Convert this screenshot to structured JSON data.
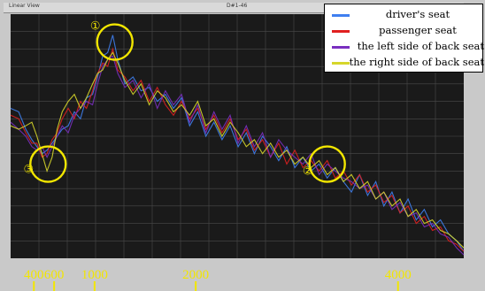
{
  "window": {
    "title": "Linear View",
    "code": "D#1-46"
  },
  "colors": {
    "background": "#ffffff",
    "plot_background": "#1a1a1a",
    "grid": "#4a4a4a",
    "annotation": "#f2e600"
  },
  "chart_data": {
    "type": "line",
    "xscale": "linear",
    "xlim": [
      170,
      4650
    ],
    "xticks": [
      400,
      600,
      1000,
      2000,
      4000
    ],
    "legend": "top-right",
    "grid": true,
    "series": [
      {
        "name": "driver's seat",
        "color": "#3f7ff0",
        "x": [
          170,
          250,
          320,
          380,
          430,
          480,
          530,
          580,
          630,
          680,
          740,
          800,
          860,
          920,
          980,
          1030,
          1080,
          1130,
          1180,
          1230,
          1300,
          1380,
          1460,
          1540,
          1620,
          1700,
          1780,
          1860,
          1940,
          2020,
          2100,
          2180,
          2260,
          2340,
          2420,
          2500,
          2580,
          2660,
          2740,
          2820,
          2900,
          2980,
          3060,
          3140,
          3220,
          3300,
          3380,
          3460,
          3540,
          3620,
          3700,
          3780,
          3860,
          3940,
          4020,
          4100,
          4180,
          4260,
          4340,
          4420,
          4500,
          4580,
          4650
        ],
        "y": [
          -19,
          -20,
          -25,
          -28,
          -30,
          -32,
          -31,
          -29,
          -27,
          -25,
          -24,
          -20,
          -22,
          -16,
          -15,
          -10,
          -4,
          -3,
          2,
          -5,
          -12,
          -10,
          -14,
          -13,
          -17,
          -15,
          -19,
          -16,
          -24,
          -20,
          -27,
          -23,
          -28,
          -24,
          -30,
          -26,
          -32,
          -27,
          -30,
          -34,
          -30,
          -36,
          -33,
          -37,
          -35,
          -39,
          -36,
          -40,
          -43,
          -38,
          -44,
          -40,
          -47,
          -43,
          -49,
          -45,
          -51,
          -48,
          -53,
          -51,
          -55,
          -57,
          -60
        ]
      },
      {
        "name": "passenger seat",
        "color": "#e02020",
        "x": [
          170,
          250,
          320,
          380,
          430,
          480,
          530,
          580,
          630,
          680,
          740,
          800,
          860,
          920,
          980,
          1030,
          1080,
          1130,
          1180,
          1230,
          1300,
          1380,
          1460,
          1540,
          1620,
          1700,
          1780,
          1860,
          1940,
          2020,
          2100,
          2180,
          2260,
          2340,
          2420,
          2500,
          2580,
          2660,
          2740,
          2820,
          2900,
          2980,
          3060,
          3140,
          3220,
          3300,
          3380,
          3460,
          3540,
          3620,
          3700,
          3780,
          3860,
          3940,
          4020,
          4100,
          4180,
          4260,
          4340,
          4420,
          4500,
          4580,
          4650
        ],
        "y": [
          -21,
          -22,
          -26,
          -29,
          -29,
          -33,
          -32,
          -28,
          -26,
          -22,
          -19,
          -22,
          -17,
          -19,
          -14,
          -9,
          -6,
          -7,
          -2,
          -8,
          -10,
          -14,
          -11,
          -17,
          -13,
          -18,
          -21,
          -17,
          -22,
          -19,
          -25,
          -21,
          -26,
          -22,
          -28,
          -25,
          -31,
          -28,
          -33,
          -29,
          -35,
          -31,
          -36,
          -34,
          -37,
          -34,
          -39,
          -37,
          -41,
          -38,
          -43,
          -41,
          -46,
          -44,
          -49,
          -47,
          -52,
          -50,
          -54,
          -53,
          -57,
          -58,
          -60
        ]
      },
      {
        "name": "the left side of back seat",
        "color": "#7a2fc0",
        "x": [
          170,
          250,
          320,
          380,
          430,
          480,
          530,
          580,
          630,
          680,
          740,
          800,
          860,
          920,
          980,
          1030,
          1080,
          1130,
          1180,
          1230,
          1300,
          1380,
          1460,
          1540,
          1620,
          1700,
          1780,
          1860,
          1940,
          2020,
          2100,
          2180,
          2260,
          2340,
          2420,
          2500,
          2580,
          2660,
          2740,
          2820,
          2900,
          2980,
          3060,
          3140,
          3220,
          3300,
          3380,
          3460,
          3540,
          3620,
          3700,
          3780,
          3860,
          3940,
          4020,
          4100,
          4180,
          4260,
          4340,
          4420,
          4500,
          4580,
          4650
        ],
        "y": [
          -23,
          -25,
          -27,
          -30,
          -31,
          -30,
          -33,
          -30,
          -27,
          -24,
          -26,
          -21,
          -19,
          -17,
          -18,
          -12,
          -7,
          -5,
          -4,
          -9,
          -13,
          -11,
          -16,
          -12,
          -19,
          -14,
          -18,
          -15,
          -23,
          -18,
          -26,
          -20,
          -25,
          -21,
          -29,
          -24,
          -30,
          -26,
          -33,
          -28,
          -31,
          -33,
          -35,
          -32,
          -38,
          -35,
          -37,
          -39,
          -40,
          -42,
          -41,
          -45,
          -43,
          -48,
          -46,
          -50,
          -49,
          -53,
          -52,
          -55,
          -56,
          -59,
          -61
        ]
      },
      {
        "name": "the right side of back seat",
        "color": "#d6d62a",
        "x": [
          170,
          250,
          320,
          380,
          430,
          480,
          530,
          580,
          630,
          680,
          740,
          800,
          860,
          920,
          980,
          1030,
          1080,
          1130,
          1180,
          1230,
          1300,
          1380,
          1460,
          1540,
          1620,
          1700,
          1780,
          1860,
          1940,
          2020,
          2100,
          2180,
          2260,
          2340,
          2420,
          2500,
          2580,
          2660,
          2740,
          2820,
          2900,
          2980,
          3060,
          3140,
          3220,
          3300,
          3380,
          3460,
          3540,
          3620,
          3700,
          3780,
          3860,
          3940,
          4020,
          4100,
          4180,
          4260,
          4340,
          4420,
          4500,
          4580,
          4650
        ],
        "y": [
          -24,
          -25,
          -24,
          -23,
          -27,
          -32,
          -37,
          -33,
          -25,
          -20,
          -17,
          -15,
          -19,
          -16,
          -12,
          -9,
          -8,
          -5,
          -3,
          -6,
          -11,
          -15,
          -12,
          -18,
          -14,
          -16,
          -20,
          -18,
          -21,
          -17,
          -24,
          -22,
          -27,
          -23,
          -26,
          -30,
          -28,
          -32,
          -29,
          -33,
          -31,
          -35,
          -33,
          -36,
          -34,
          -38,
          -36,
          -40,
          -38,
          -42,
          -40,
          -45,
          -43,
          -47,
          -45,
          -50,
          -48,
          -52,
          -51,
          -54,
          -55,
          -57,
          -59
        ]
      }
    ],
    "annotations": [
      {
        "label": "①",
        "x": 1200,
        "y": 0
      },
      {
        "label": "②",
        "x": 3300,
        "y": -35
      },
      {
        "label": "③",
        "x": 540,
        "y": -35
      }
    ]
  }
}
